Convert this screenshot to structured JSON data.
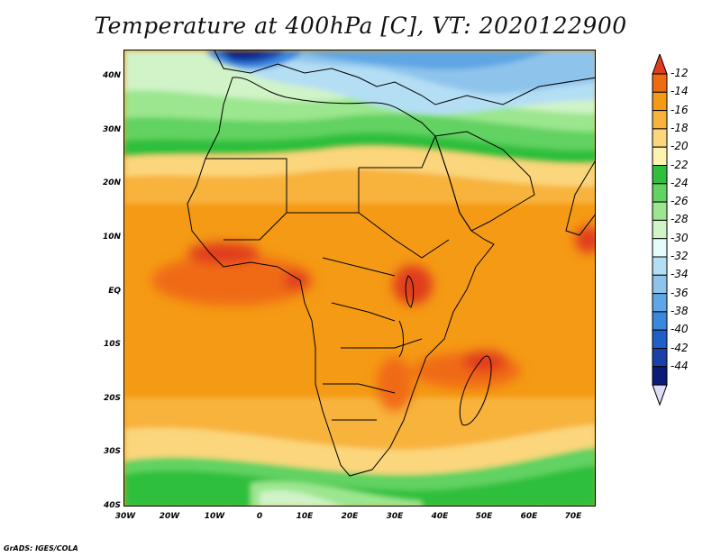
{
  "title": "Temperature at 400hPa [C], VT: 2020122900",
  "footer": "GrADS: IGES/COLA",
  "axes": {
    "y_ticks": [
      "40N",
      "30N",
      "20N",
      "10N",
      "EQ",
      "10S",
      "20S",
      "30S",
      "40S"
    ],
    "x_ticks": [
      "30W",
      "20W",
      "10W",
      "0",
      "10E",
      "20E",
      "30E",
      "40E",
      "50E",
      "60E",
      "70E"
    ],
    "lon_range": [
      -30,
      75
    ],
    "lat_range": [
      -40,
      45
    ]
  },
  "colorbar": {
    "labels": [
      "-12",
      "-14",
      "-16",
      "-18",
      "-20",
      "-22",
      "-24",
      "-26",
      "-28",
      "-30",
      "-32",
      "-34",
      "-36",
      "-38",
      "-40",
      "-42",
      "-44"
    ],
    "colors": [
      "#e03c1e",
      "#f06a12",
      "#f59a14",
      "#f8b33c",
      "#fbd67c",
      "#fdf2b0",
      "#2fbf3c",
      "#62d262",
      "#9be68e",
      "#d0f3c8",
      "#e6fbfb",
      "#b4def4",
      "#8ec4ec",
      "#5ea6e4",
      "#3a88de",
      "#1f60c8",
      "#1840a8",
      "#0a1c78",
      "#dcdcf4"
    ]
  }
}
